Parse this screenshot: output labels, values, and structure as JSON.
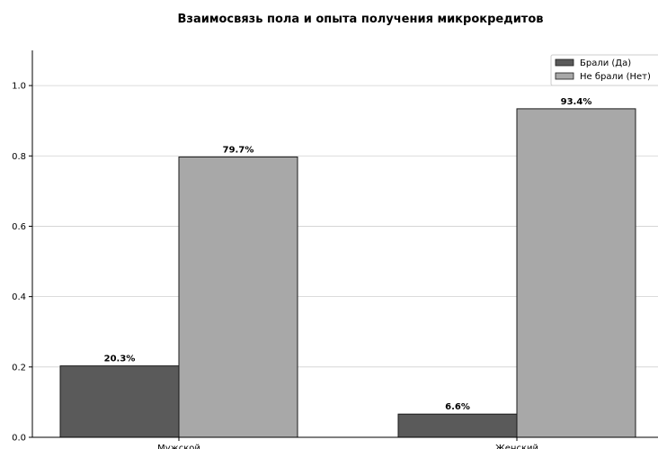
{
  "chart_data": {
    "type": "bar",
    "title": "Взаимосвязь пола и опыта получения микрокредитов",
    "xlabel": "",
    "ylabel": "",
    "categories": [
      "Мужской",
      "Женский"
    ],
    "series": [
      {
        "name": "Брали (Да)",
        "values": [
          0.203,
          0.066
        ],
        "labels": [
          "20.3%",
          "6.6%"
        ],
        "color": "#5a5a5a"
      },
      {
        "name": "Не брали (Нет)",
        "values": [
          0.797,
          0.934
        ],
        "labels": [
          "79.7%",
          "93.4%"
        ],
        "color": "#a8a8a8"
      }
    ],
    "ylim": [
      0,
      1.1
    ],
    "yticks": [
      "0.0",
      "0.2",
      "0.4",
      "0.6",
      "0.8",
      "1.0"
    ],
    "grid": true,
    "legend_position": "top-right"
  }
}
